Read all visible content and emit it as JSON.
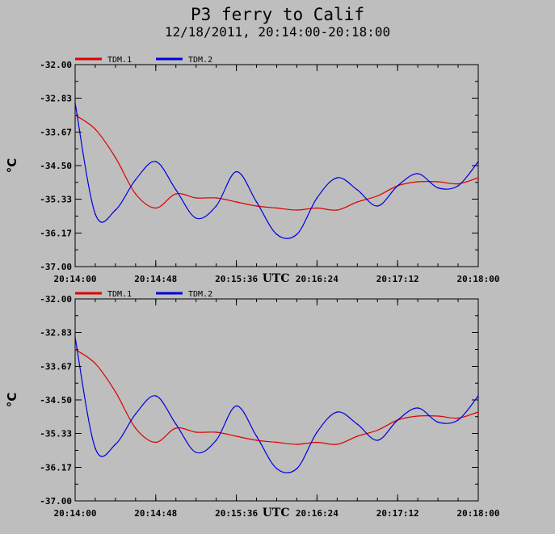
{
  "title": "P3 ferry to Calif",
  "subtitle": "12/18/2011, 20:14:00-20:18:00",
  "colors": {
    "TDM.1": "#e00000",
    "TDM.2": "#0000e0",
    "background": "#bebebe"
  },
  "chart_data": [
    {
      "type": "line",
      "ylabel": "°C",
      "xlabel": "UTC",
      "ylim": [
        -37.0,
        -32.0
      ],
      "y_ticks": [
        "-32.00",
        "-32.83",
        "-33.67",
        "-34.50",
        "-35.33",
        "-36.17",
        "-37.00"
      ],
      "x_ticks": [
        "20:14:00",
        "20:14:48",
        "20:15:36",
        "20:16:24",
        "20:17:12",
        "20:18:00"
      ],
      "legend": "top-left",
      "x": [
        "20:14:00",
        "20:14:12",
        "20:14:24",
        "20:14:36",
        "20:14:48",
        "20:15:00",
        "20:15:12",
        "20:15:24",
        "20:15:36",
        "20:15:48",
        "20:16:00",
        "20:16:12",
        "20:16:24",
        "20:16:36",
        "20:16:48",
        "20:17:00",
        "20:17:12",
        "20:17:24",
        "20:17:36",
        "20:17:48",
        "20:18:00"
      ],
      "series": [
        {
          "name": "TDM.1",
          "values": [
            -33.25,
            -33.6,
            -34.3,
            -35.2,
            -35.55,
            -35.2,
            -35.3,
            -35.3,
            -35.4,
            -35.5,
            -35.55,
            -35.6,
            -35.55,
            -35.6,
            -35.4,
            -35.25,
            -35.0,
            -34.9,
            -34.9,
            -34.95,
            -34.8
          ]
        },
        {
          "name": "TDM.2",
          "values": [
            -32.95,
            -35.7,
            -35.6,
            -34.85,
            -34.4,
            -35.1,
            -35.8,
            -35.5,
            -34.65,
            -35.4,
            -36.2,
            -36.2,
            -35.3,
            -34.8,
            -35.1,
            -35.5,
            -35.0,
            -34.7,
            -35.05,
            -35.0,
            -34.4
          ]
        }
      ]
    },
    {
      "type": "line",
      "ylabel": "°C",
      "xlabel": "UTC",
      "ylim": [
        -37.0,
        -32.0
      ],
      "y_ticks": [
        "-32.00",
        "-32.83",
        "-33.67",
        "-34.50",
        "-35.33",
        "-36.17",
        "-37.00"
      ],
      "x_ticks": [
        "20:14:00",
        "20:14:48",
        "20:15:36",
        "20:16:24",
        "20:17:12",
        "20:18:00"
      ],
      "legend": "top-left",
      "x": [
        "20:14:00",
        "20:14:12",
        "20:14:24",
        "20:14:36",
        "20:14:48",
        "20:15:00",
        "20:15:12",
        "20:15:24",
        "20:15:36",
        "20:15:48",
        "20:16:00",
        "20:16:12",
        "20:16:24",
        "20:16:36",
        "20:16:48",
        "20:17:00",
        "20:17:12",
        "20:17:24",
        "20:17:36",
        "20:17:48",
        "20:18:00"
      ],
      "series": [
        {
          "name": "TDM.1",
          "values": [
            -33.25,
            -33.6,
            -34.3,
            -35.2,
            -35.55,
            -35.2,
            -35.3,
            -35.3,
            -35.4,
            -35.5,
            -35.55,
            -35.6,
            -35.55,
            -35.6,
            -35.4,
            -35.25,
            -35.0,
            -34.9,
            -34.9,
            -34.95,
            -34.8
          ]
        },
        {
          "name": "TDM.2",
          "values": [
            -32.95,
            -35.7,
            -35.6,
            -34.85,
            -34.4,
            -35.1,
            -35.8,
            -35.5,
            -34.65,
            -35.4,
            -36.2,
            -36.2,
            -35.3,
            -34.8,
            -35.1,
            -35.5,
            -35.0,
            -34.7,
            -35.05,
            -35.0,
            -34.4
          ]
        }
      ]
    }
  ]
}
